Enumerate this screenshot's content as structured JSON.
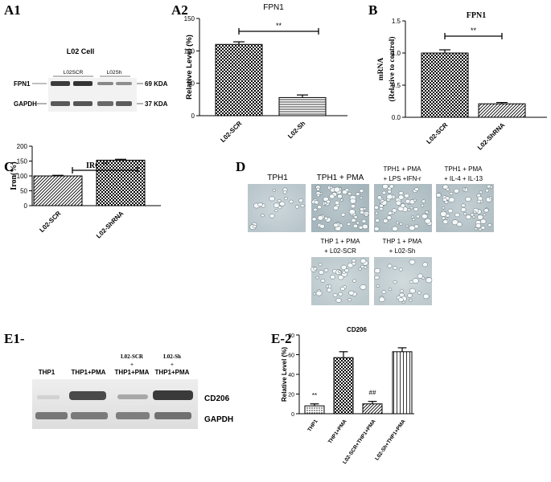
{
  "panels": {
    "a1": {
      "label": "A1",
      "title": "L02 Cell",
      "lane_groups": [
        "L02SCR",
        "L02Sh"
      ],
      "rows": [
        {
          "name": "FPN1",
          "size": "69 KDA"
        },
        {
          "name": "GAPDH",
          "size": "37 KDA"
        }
      ]
    },
    "a2": {
      "label": "A2"
    },
    "b": {
      "label": "B"
    },
    "c": {
      "label": "C"
    },
    "d": {
      "label": "D",
      "captions_row1": [
        "TPH1",
        "TPH1 + PMA",
        "TPH1 + PMA",
        "+ LPS +IFN-r",
        "TPH1 + PMA",
        "+ IL-4 + IL-13"
      ],
      "captions_row2": [
        "THP 1 + PMA",
        "+ L02-SCR",
        "THP 1 + PMA",
        "+ L02-Sh"
      ]
    },
    "e1": {
      "label": "E1-",
      "lanes": [
        "THP1",
        "THP1+PMA",
        "L02-SCR",
        "+",
        "THP1+PMA",
        "L02-Sh",
        "+",
        "THP1+PMA"
      ],
      "rows": [
        "CD206",
        "GAPDH"
      ]
    },
    "e2": {
      "label": "E-2"
    }
  },
  "chart_data": [
    {
      "id": "a2",
      "type": "bar",
      "title": "FPN1",
      "categories": [
        "L02-SCR",
        "L02-Sh"
      ],
      "values": [
        110,
        28
      ],
      "errors": [
        4,
        4
      ],
      "ylabel": "Relative Level (%)",
      "ylim": [
        0,
        150
      ],
      "yticks": [
        0,
        50,
        100,
        150
      ],
      "annotation": "**"
    },
    {
      "id": "b",
      "type": "bar",
      "title": "FPN1",
      "categories": [
        "L02-SCR",
        "L02-ShRNA"
      ],
      "values": [
        1.0,
        0.21
      ],
      "errors": [
        0.05,
        0.02
      ],
      "ylabel": [
        "mRNA",
        "(Relative to control)"
      ],
      "ylim": [
        0,
        1.5
      ],
      "yticks": [
        "0.0",
        "0.5",
        "1.0",
        "1.5"
      ],
      "annotation": "**"
    },
    {
      "id": "c",
      "type": "bar",
      "title": "IRON",
      "categories": [
        "L02-SCR",
        "L02-ShRNA"
      ],
      "values": [
        100,
        153
      ],
      "errors": [
        2,
        3
      ],
      "ylabel": "Iron(%)",
      "ylim": [
        0,
        200
      ],
      "yticks": [
        0,
        50,
        100,
        150,
        200
      ],
      "annotation": "**"
    },
    {
      "id": "e2",
      "type": "bar",
      "title": "CD206",
      "categories": [
        "THP1",
        "THP1+PMA",
        "L02-SCR+THP1+PMA",
        "L02-Sh+THP1+PMA"
      ],
      "values": [
        8,
        57,
        10,
        63
      ],
      "errors": [
        2,
        6,
        2.5,
        4
      ],
      "ylabel": "Relative Level (%)",
      "ylim": [
        0,
        80
      ],
      "yticks": [
        0,
        20,
        40,
        60,
        80
      ],
      "marks": [
        "**",
        "",
        "##",
        ""
      ]
    }
  ]
}
